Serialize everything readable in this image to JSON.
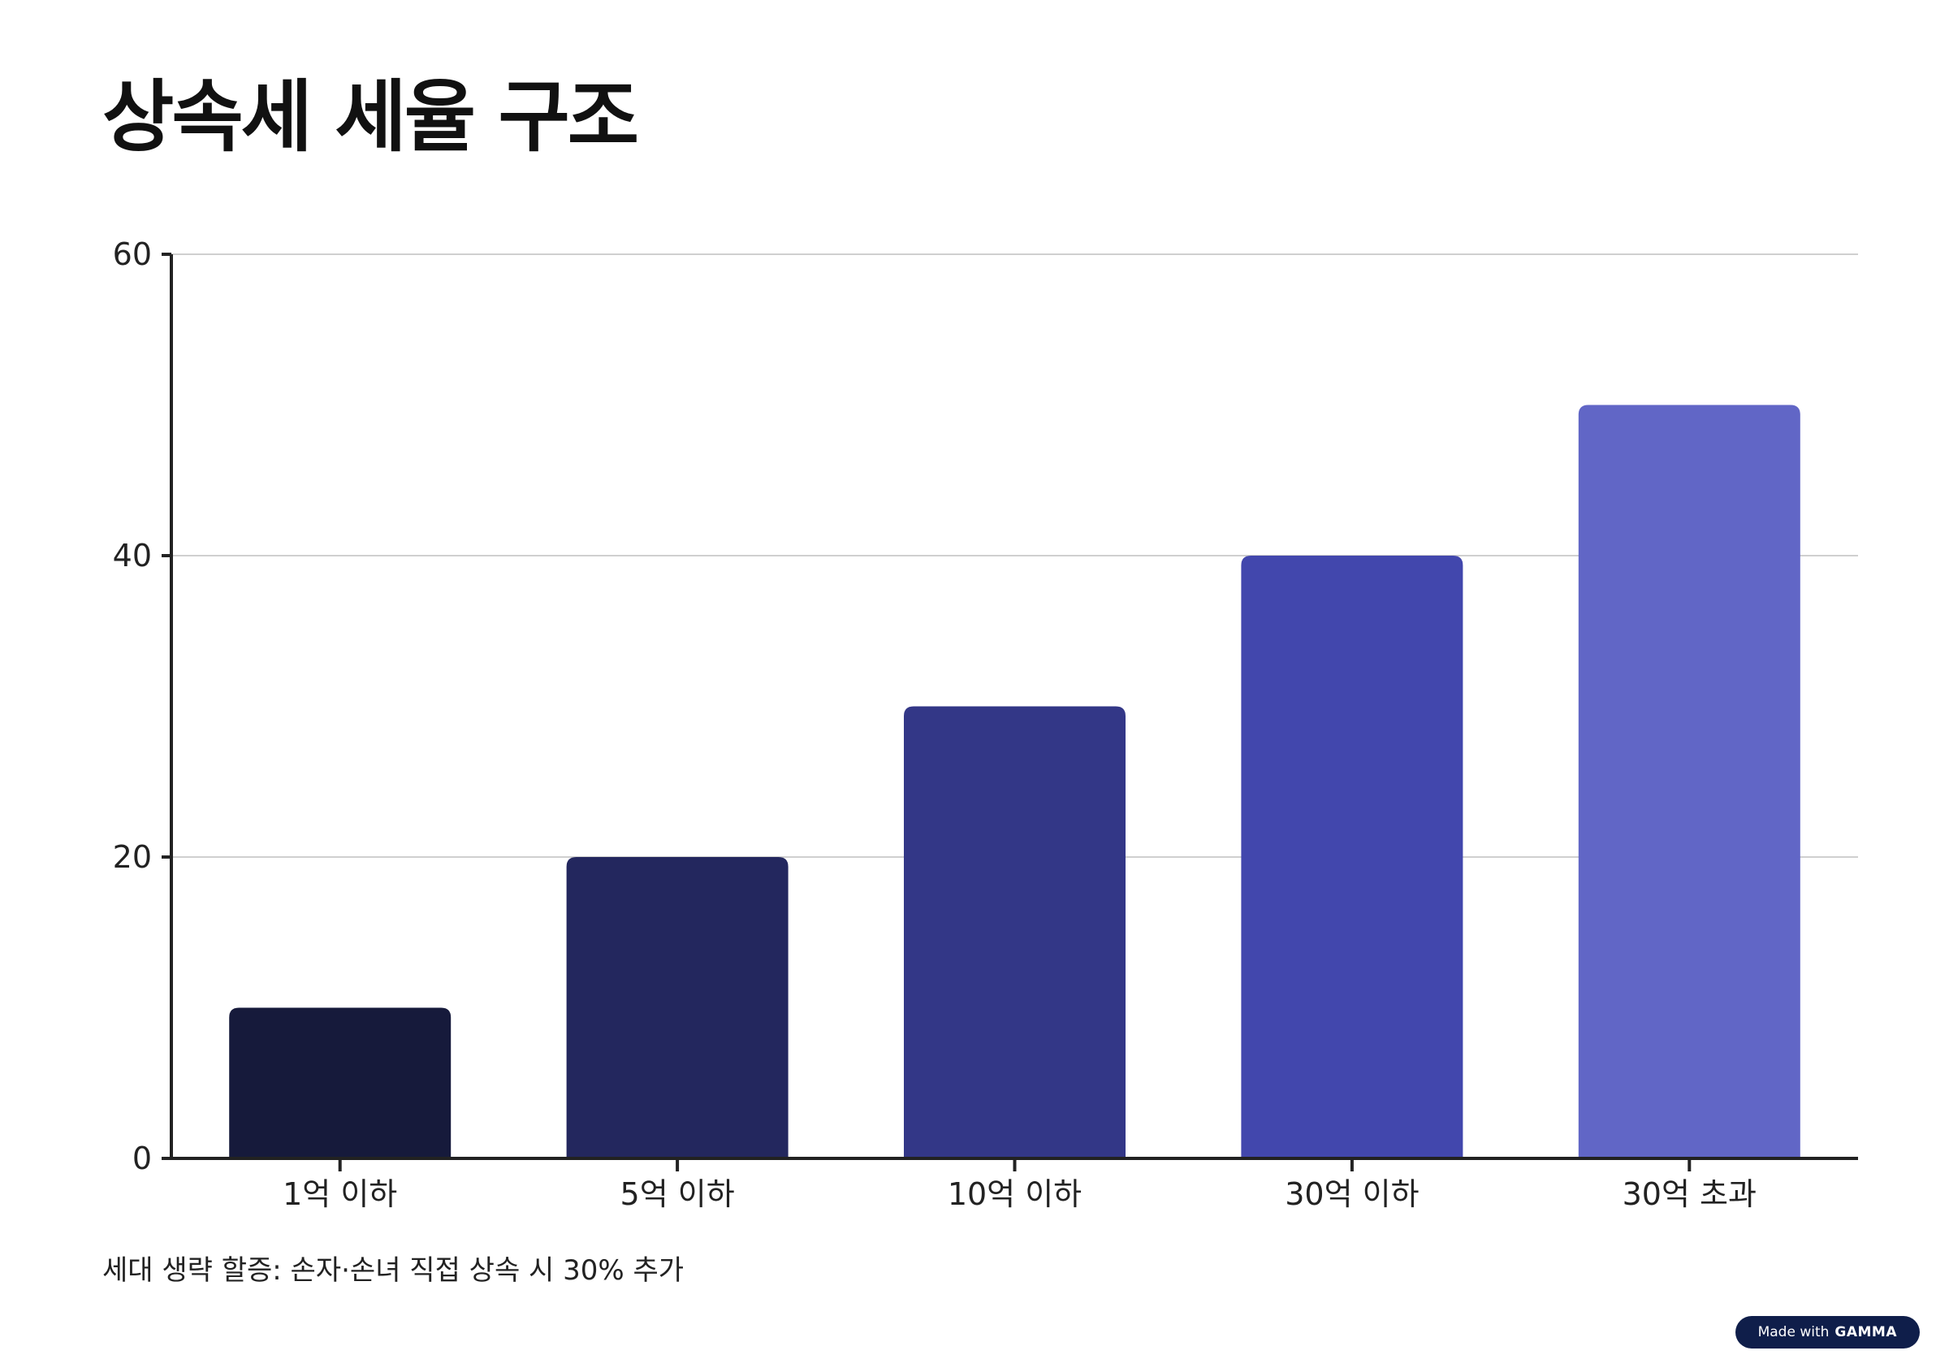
{
  "title": "상속세 세율 구조",
  "note": "세대 생략 할증: 손자·손녀 직접 상속 시 30% 추가",
  "badge": {
    "prefix": "Made with",
    "brand": "GAMMA"
  },
  "chart_data": {
    "type": "bar",
    "categories": [
      "1억 이하",
      "5억 이하",
      "10억 이하",
      "30억 이하",
      "30억 초과"
    ],
    "values": [
      10,
      20,
      30,
      40,
      50
    ],
    "colors": [
      "#161a3b",
      "#23275e",
      "#333787",
      "#4247ad",
      "#6166c6"
    ],
    "ylim": [
      0,
      60
    ],
    "yticks": [
      0,
      20,
      40,
      60
    ],
    "grid": true
  }
}
